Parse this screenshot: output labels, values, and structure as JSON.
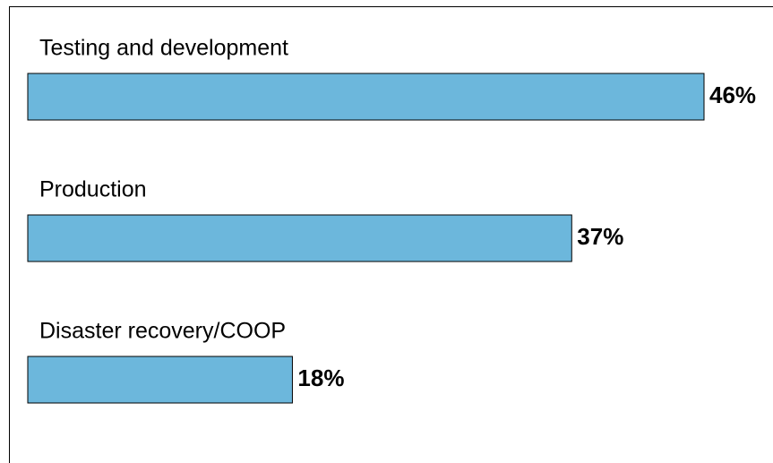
{
  "chart_data": {
    "type": "bar",
    "orientation": "horizontal",
    "categories": [
      "Testing and development",
      "Production",
      "Disaster recovery/COOP"
    ],
    "values": [
      46,
      37,
      18
    ],
    "value_labels": [
      "46%",
      "37%",
      "18%"
    ],
    "color": "#6cb7dc"
  }
}
